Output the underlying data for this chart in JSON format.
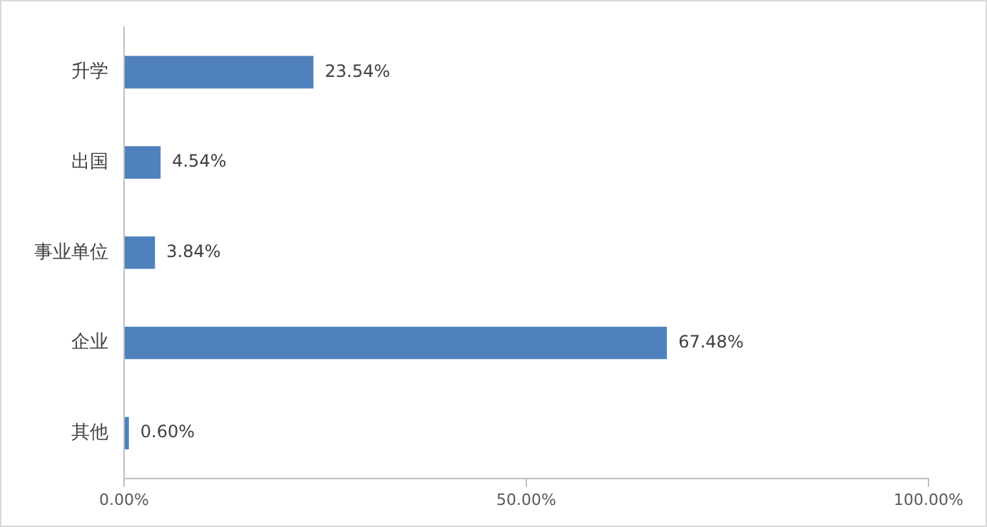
{
  "chart_data": {
    "type": "bar",
    "orientation": "horizontal",
    "categories": [
      "升学",
      "出国",
      "事业单位",
      "企业",
      "其他"
    ],
    "values": [
      23.54,
      4.54,
      3.84,
      67.48,
      0.6
    ],
    "value_labels": [
      "23.54%",
      "4.54%",
      "3.84%",
      "67.48%",
      "0.60%"
    ],
    "color": "#4f81bd",
    "xlim": [
      0,
      100
    ],
    "xticks": [
      {
        "value": 0,
        "label": "0.00%"
      },
      {
        "value": 50,
        "label": "50.00%"
      },
      {
        "value": 100,
        "label": "100.00%"
      }
    ],
    "grid": false,
    "legend": false
  }
}
